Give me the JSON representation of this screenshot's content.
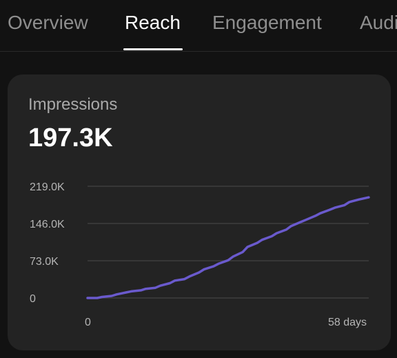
{
  "tabs": [
    {
      "label": "Overview",
      "active": false
    },
    {
      "label": "Reach",
      "active": true
    },
    {
      "label": "Engagement",
      "active": false
    },
    {
      "label": "Audi",
      "active": false
    }
  ],
  "card": {
    "metric_label": "Impressions",
    "metric_value": "197.3K"
  },
  "colors": {
    "line": "#6a5acd",
    "background": "#121212",
    "card": "#232323"
  },
  "chart_data": {
    "type": "line",
    "x_tick_labels": [
      "0",
      "58 days"
    ],
    "y_tick_labels": [
      "219.0K",
      "146.0K",
      "73.0K",
      "0"
    ],
    "y_ticks": [
      219000,
      146000,
      73000,
      0
    ],
    "xlim": [
      0,
      58
    ],
    "ylim": [
      0,
      219000
    ],
    "grid": true,
    "series": [
      {
        "x": [
          0,
          2,
          3,
          5,
          6,
          8,
          9,
          11,
          12,
          14,
          15,
          17,
          18,
          20,
          21,
          23,
          24,
          26,
          27,
          29,
          30,
          32,
          33,
          35,
          36,
          38,
          39,
          41,
          42,
          44,
          45,
          47,
          48,
          50,
          51,
          53,
          54,
          56,
          58
        ],
        "y": [
          0,
          0,
          2000,
          4000,
          7000,
          11000,
          13000,
          15000,
          18000,
          20000,
          24000,
          29000,
          34000,
          37000,
          42000,
          50000,
          56000,
          62000,
          67000,
          74000,
          81000,
          90000,
          100000,
          108000,
          114000,
          121000,
          127000,
          134000,
          141000,
          149000,
          153000,
          161000,
          166000,
          173000,
          177000,
          182000,
          188000,
          193000,
          197300
        ]
      }
    ]
  }
}
